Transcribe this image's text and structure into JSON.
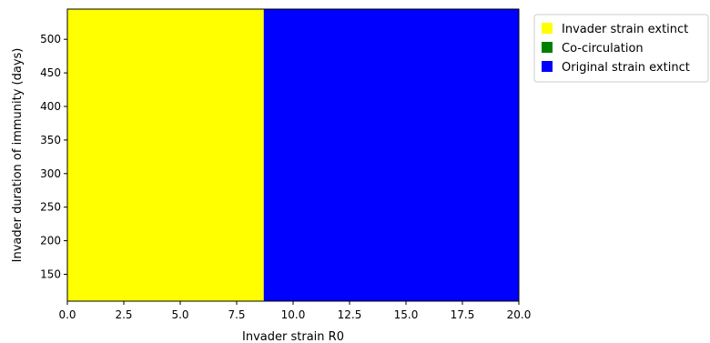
{
  "chart_data": {
    "type": "heatmap",
    "title": "",
    "xlabel": "Invader strain R0",
    "ylabel": "Invader duration of immunity (days)",
    "xlim": [
      0,
      20
    ],
    "ylim": [
      110,
      545
    ],
    "x_ticks": [
      0,
      2.5,
      5,
      7.5,
      10,
      12.5,
      15,
      17.5,
      20
    ],
    "x_tick_labels": [
      "0.0",
      "2.5",
      "5.0",
      "7.5",
      "10.0",
      "12.5",
      "15.0",
      "17.5",
      "20.0"
    ],
    "y_ticks": [
      150,
      200,
      250,
      300,
      350,
      400,
      450,
      500
    ],
    "y_tick_labels": [
      "150",
      "200",
      "250",
      "300",
      "350",
      "400",
      "450",
      "500"
    ],
    "regions": [
      {
        "category": "Invader strain extinct",
        "x_range": [
          0,
          8.7
        ],
        "y_range": [
          110,
          545
        ]
      },
      {
        "category": "Original strain extinct",
        "x_range": [
          8.7,
          20
        ],
        "y_range": [
          110,
          545
        ]
      }
    ],
    "legend": {
      "placement": "outside-upper-right",
      "entries": [
        {
          "label": "Invader strain extinct",
          "color": "#ffff00"
        },
        {
          "label": "Co-circulation",
          "color": "#008000"
        },
        {
          "label": "Original strain extinct",
          "color": "#0000ff"
        }
      ]
    }
  }
}
